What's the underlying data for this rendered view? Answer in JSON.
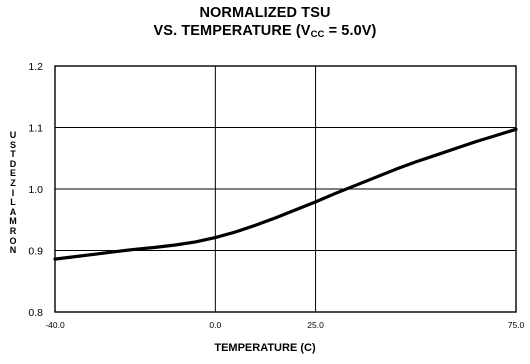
{
  "chart_data": {
    "type": "line",
    "title_line1": "NORMALIZED TSU",
    "title_line2_main": "VS. TEMPERATURE  (V",
    "title_line2_sub": "CC",
    "title_line2_tail": " = 5.0V)",
    "ylabel_letters": [
      "U",
      "S",
      "T",
      "D",
      "E",
      "Z",
      "I",
      "L",
      "A",
      "M",
      "R",
      "O",
      "N"
    ],
    "xlabel": "TEMPERATURE (C)",
    "xlim": [
      -40,
      75
    ],
    "ylim": [
      0.8,
      1.2
    ],
    "x_ticks": [
      -40,
      0,
      25,
      75
    ],
    "x_tick_labels": [
      "-40.0",
      "0.0",
      "25.0",
      "75.0"
    ],
    "y_ticks": [
      0.8,
      0.9,
      1.0,
      1.1,
      1.2
    ],
    "y_tick_labels": [
      "0.8",
      "0.9",
      "1.0",
      "1.1",
      "1.2"
    ],
    "grid": true,
    "series": [
      {
        "x": [
          -40,
          -35,
          -30,
          -25,
          -20,
          -15,
          -10,
          -5,
          0,
          5,
          10,
          15,
          20,
          25,
          30,
          35,
          40,
          45,
          50,
          55,
          60,
          65,
          70,
          75
        ],
        "y": [
          0.886,
          0.89,
          0.894,
          0.898,
          0.902,
          0.905,
          0.909,
          0.914,
          0.921,
          0.93,
          0.941,
          0.953,
          0.966,
          0.979,
          0.993,
          1.006,
          1.019,
          1.032,
          1.044,
          1.055,
          1.066,
          1.077,
          1.087,
          1.097
        ],
        "color": "#000000"
      }
    ]
  }
}
